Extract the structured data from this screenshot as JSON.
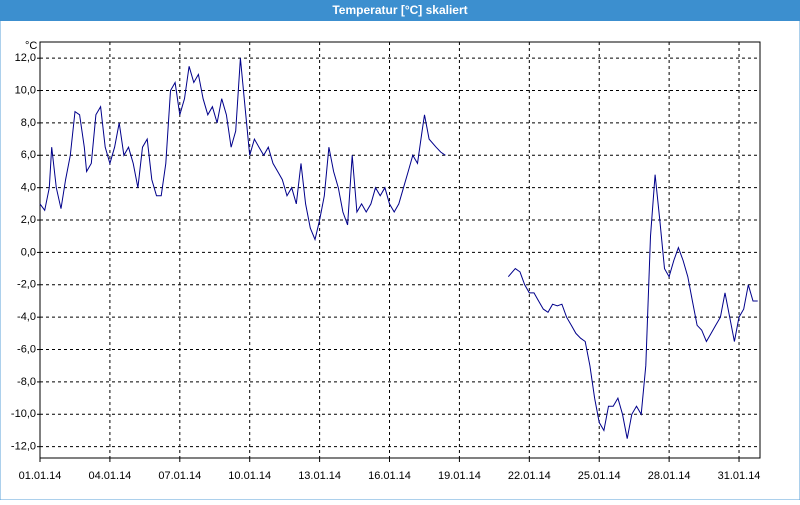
{
  "window_title": "Temperatur [°C] skaliert",
  "chart_data": {
    "type": "line",
    "y_unit_label": "°C",
    "grid": true,
    "x": [
      0,
      0.2,
      0.4,
      0.5,
      0.7,
      0.9,
      1.1,
      1.3,
      1.5,
      1.7,
      1.9,
      2.0,
      2.2,
      2.4,
      2.6,
      2.8,
      3.0,
      3.2,
      3.4,
      3.6,
      3.8,
      4.0,
      4.2,
      4.4,
      4.6,
      4.8,
      5.0,
      5.2,
      5.4,
      5.6,
      5.8,
      6.0,
      6.2,
      6.4,
      6.6,
      6.8,
      7.0,
      7.2,
      7.4,
      7.6,
      7.8,
      8.0,
      8.2,
      8.4,
      8.6,
      8.8,
      9.0,
      9.2,
      9.4,
      9.6,
      9.8,
      10.0,
      10.2,
      10.4,
      10.6,
      10.8,
      11.0,
      11.2,
      11.4,
      11.6,
      11.8,
      12.0,
      12.2,
      12.4,
      12.6,
      12.8,
      13.0,
      13.2,
      13.4,
      13.6,
      13.8,
      14.0,
      14.2,
      14.4,
      14.6,
      14.8,
      15.0,
      15.2,
      15.4,
      15.6,
      15.8,
      16.0,
      16.2,
      16.4,
      16.5,
      16.7,
      17.0,
      17.2,
      17.4,
      18.0,
      20.1,
      20.4,
      20.6,
      20.8,
      21.0,
      21.2,
      21.4,
      21.6,
      21.8,
      22.0,
      22.2,
      22.4,
      22.6,
      22.8,
      23.0,
      23.2,
      23.4,
      23.6,
      23.8,
      24.0,
      24.2,
      24.4,
      24.6,
      24.8,
      25.0,
      25.2,
      25.4,
      25.6,
      25.8,
      26.0,
      26.2,
      26.4,
      26.6,
      26.8,
      27.0,
      27.2,
      27.4,
      27.6,
      27.8,
      28.0,
      28.2,
      28.4,
      28.6,
      28.8,
      29.0,
      29.2,
      29.4,
      29.6,
      29.8,
      30.0,
      30.2,
      30.4,
      30.6,
      30.8
    ],
    "series": [
      {
        "name": "Temperatur",
        "color": "#00008b",
        "values": [
          3.0,
          2.6,
          4.0,
          6.5,
          4.0,
          2.7,
          4.5,
          6.0,
          8.7,
          8.5,
          6.5,
          5.0,
          5.5,
          8.5,
          9.0,
          6.5,
          5.5,
          6.5,
          8.0,
          6.0,
          6.5,
          5.5,
          4.0,
          6.5,
          7.0,
          4.5,
          3.5,
          3.5,
          5.5,
          10.0,
          10.5,
          8.5,
          9.5,
          11.5,
          10.5,
          11.0,
          9.5,
          8.5,
          9.0,
          8.0,
          9.5,
          8.5,
          6.5,
          7.5,
          12.0,
          9.0,
          6.0,
          7.0,
          6.5,
          6.0,
          6.5,
          5.5,
          5.0,
          4.5,
          3.5,
          4.0,
          3.0,
          5.5,
          3.0,
          1.5,
          0.8,
          2.0,
          3.5,
          6.5,
          5.0,
          4.0,
          2.5,
          1.7,
          6.0,
          2.5,
          3.0,
          2.5,
          3.0,
          4.0,
          3.5,
          4.0,
          3.0,
          2.5,
          3.0,
          4.0,
          5.0,
          6.0,
          5.5,
          7.5,
          8.5,
          7.0,
          6.5,
          6.2,
          6.0,
          null,
          -1.5,
          -1.0,
          -1.2,
          -2.0,
          -2.5,
          -2.5,
          -3.0,
          -3.5,
          -3.7,
          -3.2,
          -3.3,
          -3.2,
          -4.0,
          -4.5,
          -5.0,
          -5.3,
          -5.5,
          -7.0,
          -9.0,
          -10.5,
          -11.0,
          -9.5,
          -9.5,
          -9.0,
          -10.0,
          -11.5,
          -10.0,
          -9.5,
          -10.0,
          -7.0,
          1.0,
          4.8,
          2.0,
          -1.0,
          -1.5,
          -0.5,
          0.3,
          -0.5,
          -1.5,
          -3.0,
          -4.5,
          -4.8,
          -5.5,
          -5.0,
          -4.5,
          -4.0,
          -2.5,
          -4.0,
          -5.5,
          -4.0,
          -3.5,
          -2.0,
          -3.0,
          -3.0
        ]
      }
    ],
    "xlim": [
      0,
      30.9
    ],
    "ylim": [
      -12.7,
      13
    ],
    "xticks": [
      {
        "value": 0,
        "label": "01.01.14"
      },
      {
        "value": 3,
        "label": "04.01.14"
      },
      {
        "value": 6,
        "label": "07.01.14"
      },
      {
        "value": 9,
        "label": "10.01.14"
      },
      {
        "value": 12,
        "label": "13.01.14"
      },
      {
        "value": 15,
        "label": "16.01.14"
      },
      {
        "value": 18,
        "label": "19.01.14"
      },
      {
        "value": 21,
        "label": "22.01.14"
      },
      {
        "value": 24,
        "label": "25.01.14"
      },
      {
        "value": 27,
        "label": "28.01.14"
      },
      {
        "value": 30,
        "label": "31.01.14"
      }
    ],
    "yticks": [
      {
        "value": -12,
        "label": "-12,0"
      },
      {
        "value": -10,
        "label": "-10,0"
      },
      {
        "value": -8,
        "label": "-8,0"
      },
      {
        "value": -6,
        "label": "-6,0"
      },
      {
        "value": -4,
        "label": "-4,0"
      },
      {
        "value": -2,
        "label": "-2,0"
      },
      {
        "value": 0,
        "label": "0,0"
      },
      {
        "value": 2,
        "label": "2,0"
      },
      {
        "value": 4,
        "label": "4,0"
      },
      {
        "value": 6,
        "label": "6,0"
      },
      {
        "value": 8,
        "label": "8,0"
      },
      {
        "value": 10,
        "label": "10,0"
      },
      {
        "value": 12,
        "label": "12,0"
      }
    ]
  }
}
